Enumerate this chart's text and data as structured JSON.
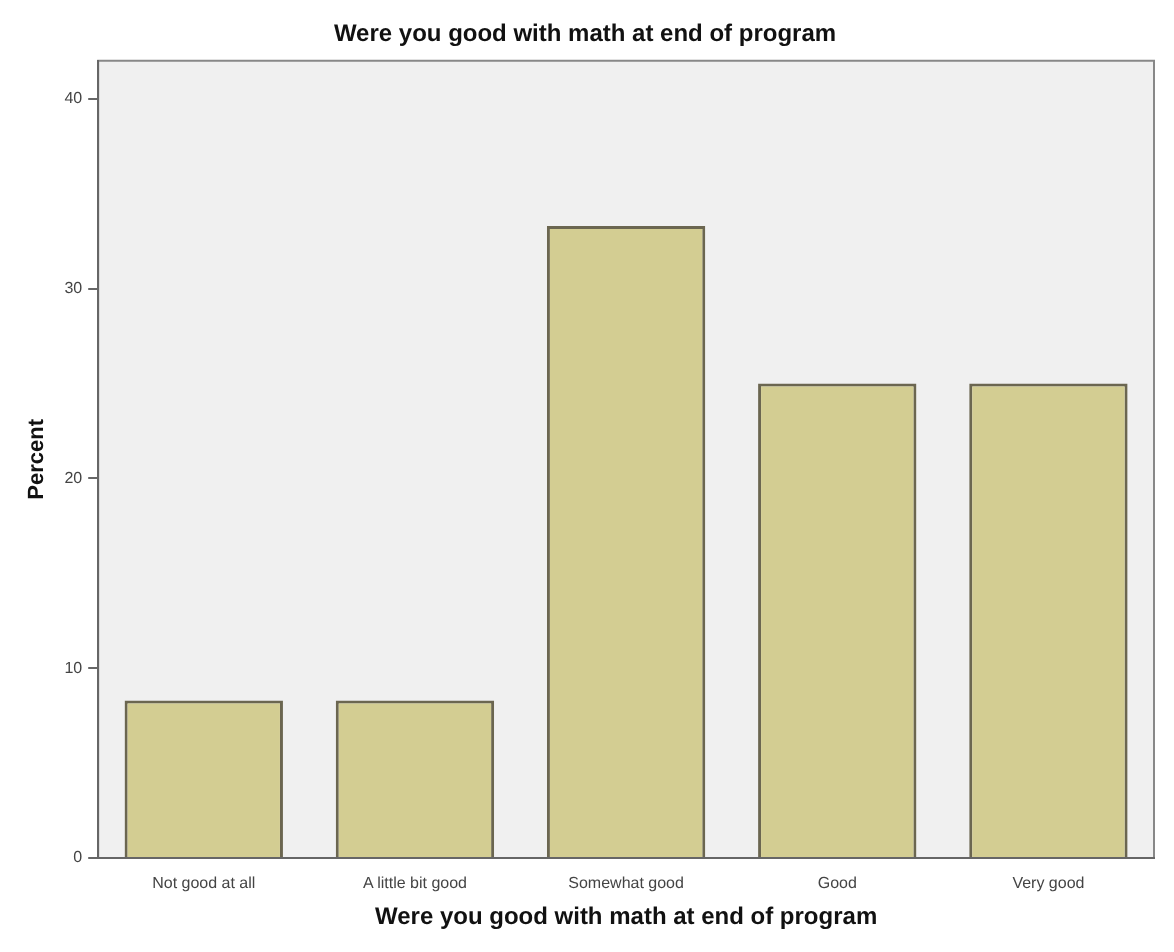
{
  "chart_data": {
    "type": "bar",
    "title": "Were you good with math at end of program",
    "xlabel": "Were you good with math at end of program",
    "ylabel": "Percent",
    "categories": [
      "Not good at all",
      "A little bit good",
      "Somewhat good",
      "Good",
      "Very good"
    ],
    "values": [
      8.3,
      8.3,
      33.3,
      25,
      25
    ],
    "color": "#d3cd92",
    "ylim": [
      0,
      42
    ],
    "yticks": [
      0,
      10,
      20,
      30,
      40
    ],
    "grid": false,
    "legend": false
  }
}
